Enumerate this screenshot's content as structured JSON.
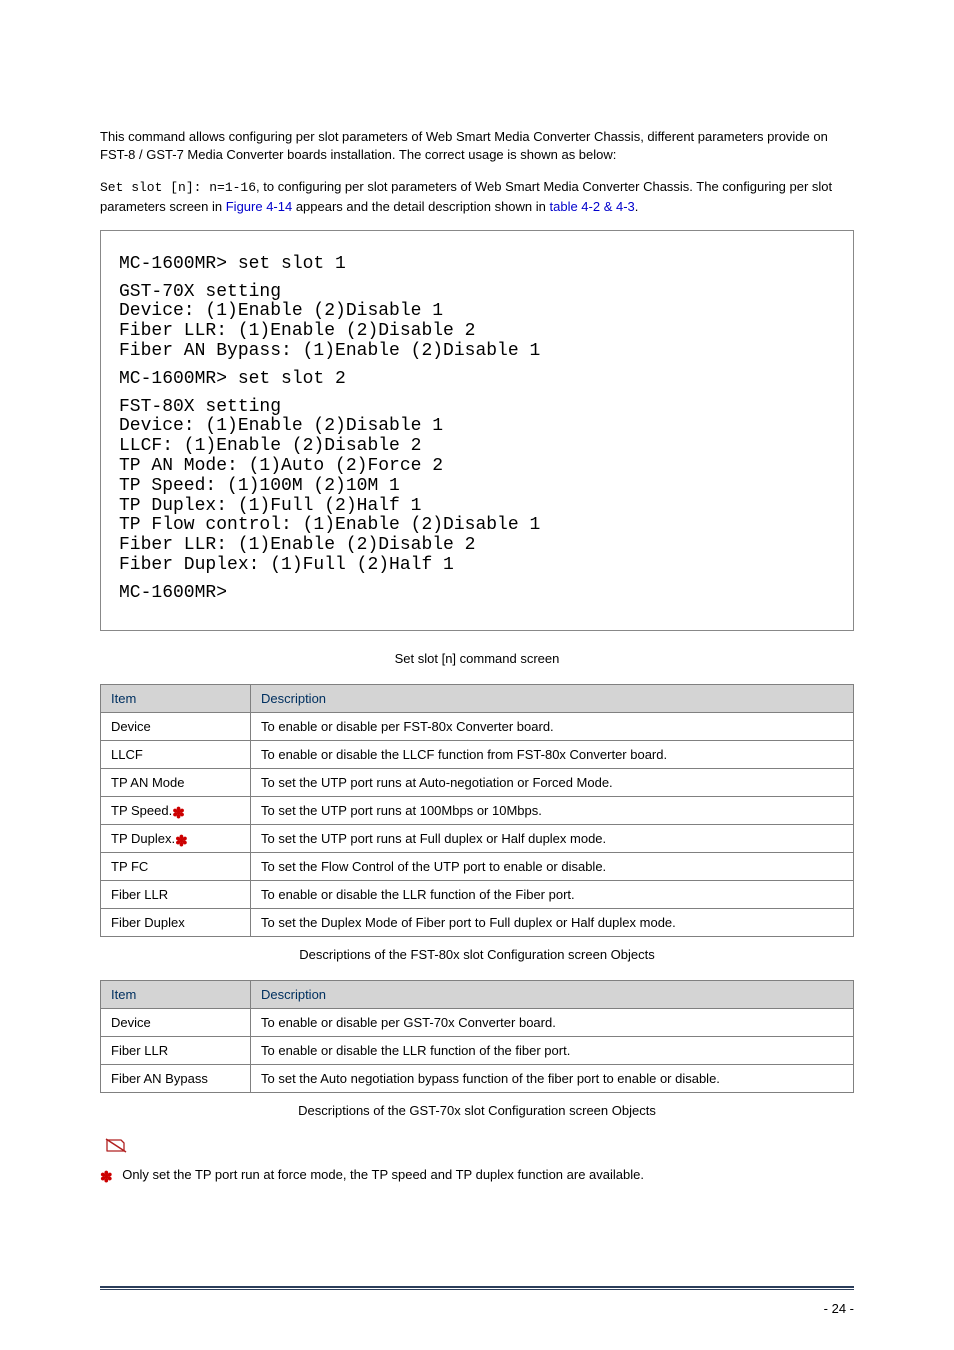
{
  "intro_para": "This command allows configuring per slot parameters of Web Smart Media Converter Chassis, different parameters provide on FST-8 / GST-7 Media Converter boards installation. The correct usage is shown as below:",
  "setslot_para": {
    "mono": "Set slot [n]: n=1-16",
    "text1": ", to configuring per slot parameters of Web Smart Media Converter Chassis. The configuring per slot parameters screen in ",
    "fig_ref": "Figure 4-14",
    "text2": " appears and the detail description shown in ",
    "tab_ref": "table 4-2 & 4-3",
    "text3": "."
  },
  "terminal": {
    "block1": [
      "MC-1600MR> set slot 1"
    ],
    "block2": [
      "GST-70X setting",
      "Device: (1)Enable (2)Disable 1",
      "Fiber LLR: (1)Enable (2)Disable 2",
      "Fiber AN Bypass: (1)Enable (2)Disable 1"
    ],
    "block3": [
      "MC-1600MR> set slot 2"
    ],
    "block4": [
      "FST-80X setting",
      "Device: (1)Enable (2)Disable 1",
      "LLCF: (1)Enable (2)Disable 2",
      "TP AN Mode: (1)Auto (2)Force 2",
      "TP Speed: (1)100M (2)10M 1",
      "TP Duplex: (1)Full (2)Half 1",
      "TP Flow control: (1)Enable (2)Disable 1",
      "Fiber LLR: (1)Enable (2)Disable 2",
      "Fiber Duplex: (1)Full (2)Half 1"
    ],
    "block5": [
      "MC-1600MR>"
    ]
  },
  "caption1": "Set slot [n] command screen",
  "table1": {
    "headers": [
      "Item",
      "Description"
    ],
    "rows": [
      {
        "item": "Device",
        "desc": "To enable or disable per FST-80x Converter board.",
        "ast": false
      },
      {
        "item": "LLCF",
        "desc": "To enable or disable the LLCF function from FST-80x Converter board.",
        "ast": false
      },
      {
        "item": "TP AN Mode",
        "desc": "To set the UTP port runs at Auto-negotiation or Forced Mode.",
        "ast": false
      },
      {
        "item": "TP Speed.",
        "desc": "To set the UTP port runs at 100Mbps or 10Mbps.",
        "ast": true
      },
      {
        "item": "TP Duplex.",
        "desc": "To set the UTP port runs at Full duplex or Half duplex mode.",
        "ast": true
      },
      {
        "item": "TP FC",
        "desc": "To set the Flow Control of the UTP port to enable or disable.",
        "ast": false
      },
      {
        "item": "Fiber LLR",
        "desc": "To enable or disable the LLR function of the Fiber port.",
        "ast": false
      },
      {
        "item": "Fiber Duplex",
        "desc": "To set the Duplex Mode of Fiber port to Full duplex or Half duplex mode.",
        "ast": false
      }
    ]
  },
  "caption2": "Descriptions of the FST-80x slot Configuration screen Objects",
  "table2": {
    "headers": [
      "Item",
      "Description"
    ],
    "rows": [
      {
        "item": "Device",
        "desc": "To enable or disable per GST-70x Converter board.",
        "ast": false
      },
      {
        "item": "Fiber LLR",
        "desc": "To enable or disable the LLR function of the fiber port.",
        "ast": false
      },
      {
        "item": "Fiber AN Bypass",
        "desc": "To set the Auto negotiation bypass function of the fiber port to enable or disable.",
        "ast": false
      }
    ]
  },
  "caption3": "Descriptions of the GST-70x slot Configuration screen Objects",
  "footnote": "Only set the TP port run at force mode, the TP speed and TP duplex function are available.",
  "page_number": "- 24 -"
}
